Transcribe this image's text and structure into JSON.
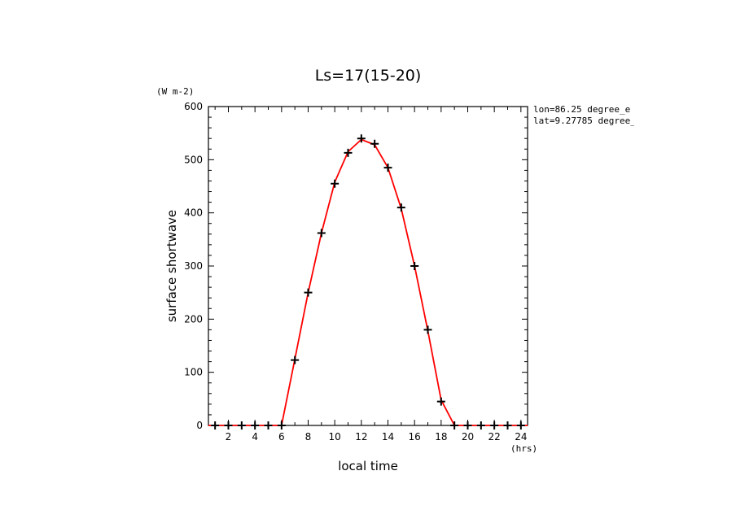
{
  "chart_data": {
    "type": "line",
    "title": "Ls=17(15-20)",
    "xlabel": "local time",
    "ylabel": "surface shortwave",
    "y_unit": "(W m-2)",
    "x_unit": "(hrs)",
    "xlim": [
      0.5,
      24.5
    ],
    "ylim": [
      0,
      600
    ],
    "x_ticks_major": [
      2,
      4,
      6,
      8,
      10,
      12,
      14,
      16,
      18,
      20,
      22,
      24
    ],
    "y_ticks_major": [
      0,
      100,
      200,
      300,
      400,
      500,
      600
    ],
    "annotations": [
      "lon=86.25 degree_e",
      "lat=9.27785 degree_"
    ],
    "series": [
      {
        "style": "line",
        "color": "#ff0000",
        "x": [
          0.5,
          1,
          2,
          3,
          4,
          5,
          6,
          7,
          8,
          9,
          10,
          11,
          12,
          13,
          14,
          15,
          16,
          17,
          18,
          19,
          20,
          21,
          22,
          23,
          24,
          24.5
        ],
        "values": [
          0,
          0,
          0,
          0,
          0,
          0,
          0,
          125,
          250,
          362,
          458,
          515,
          538,
          528,
          485,
          408,
          300,
          178,
          48,
          0,
          0,
          0,
          0,
          0,
          0,
          0
        ]
      },
      {
        "style": "markers",
        "marker": "+",
        "color": "#000000",
        "x": [
          1,
          2,
          3,
          4,
          5,
          6,
          7,
          8,
          9,
          10,
          11,
          12,
          13,
          14,
          15,
          16,
          17,
          18,
          19,
          20,
          21,
          22,
          23,
          24
        ],
        "values": [
          0,
          0,
          0,
          0,
          0,
          0,
          123,
          250,
          362,
          455,
          513,
          540,
          530,
          485,
          410,
          300,
          180,
          45,
          0,
          0,
          0,
          0,
          0,
          0
        ]
      }
    ]
  }
}
